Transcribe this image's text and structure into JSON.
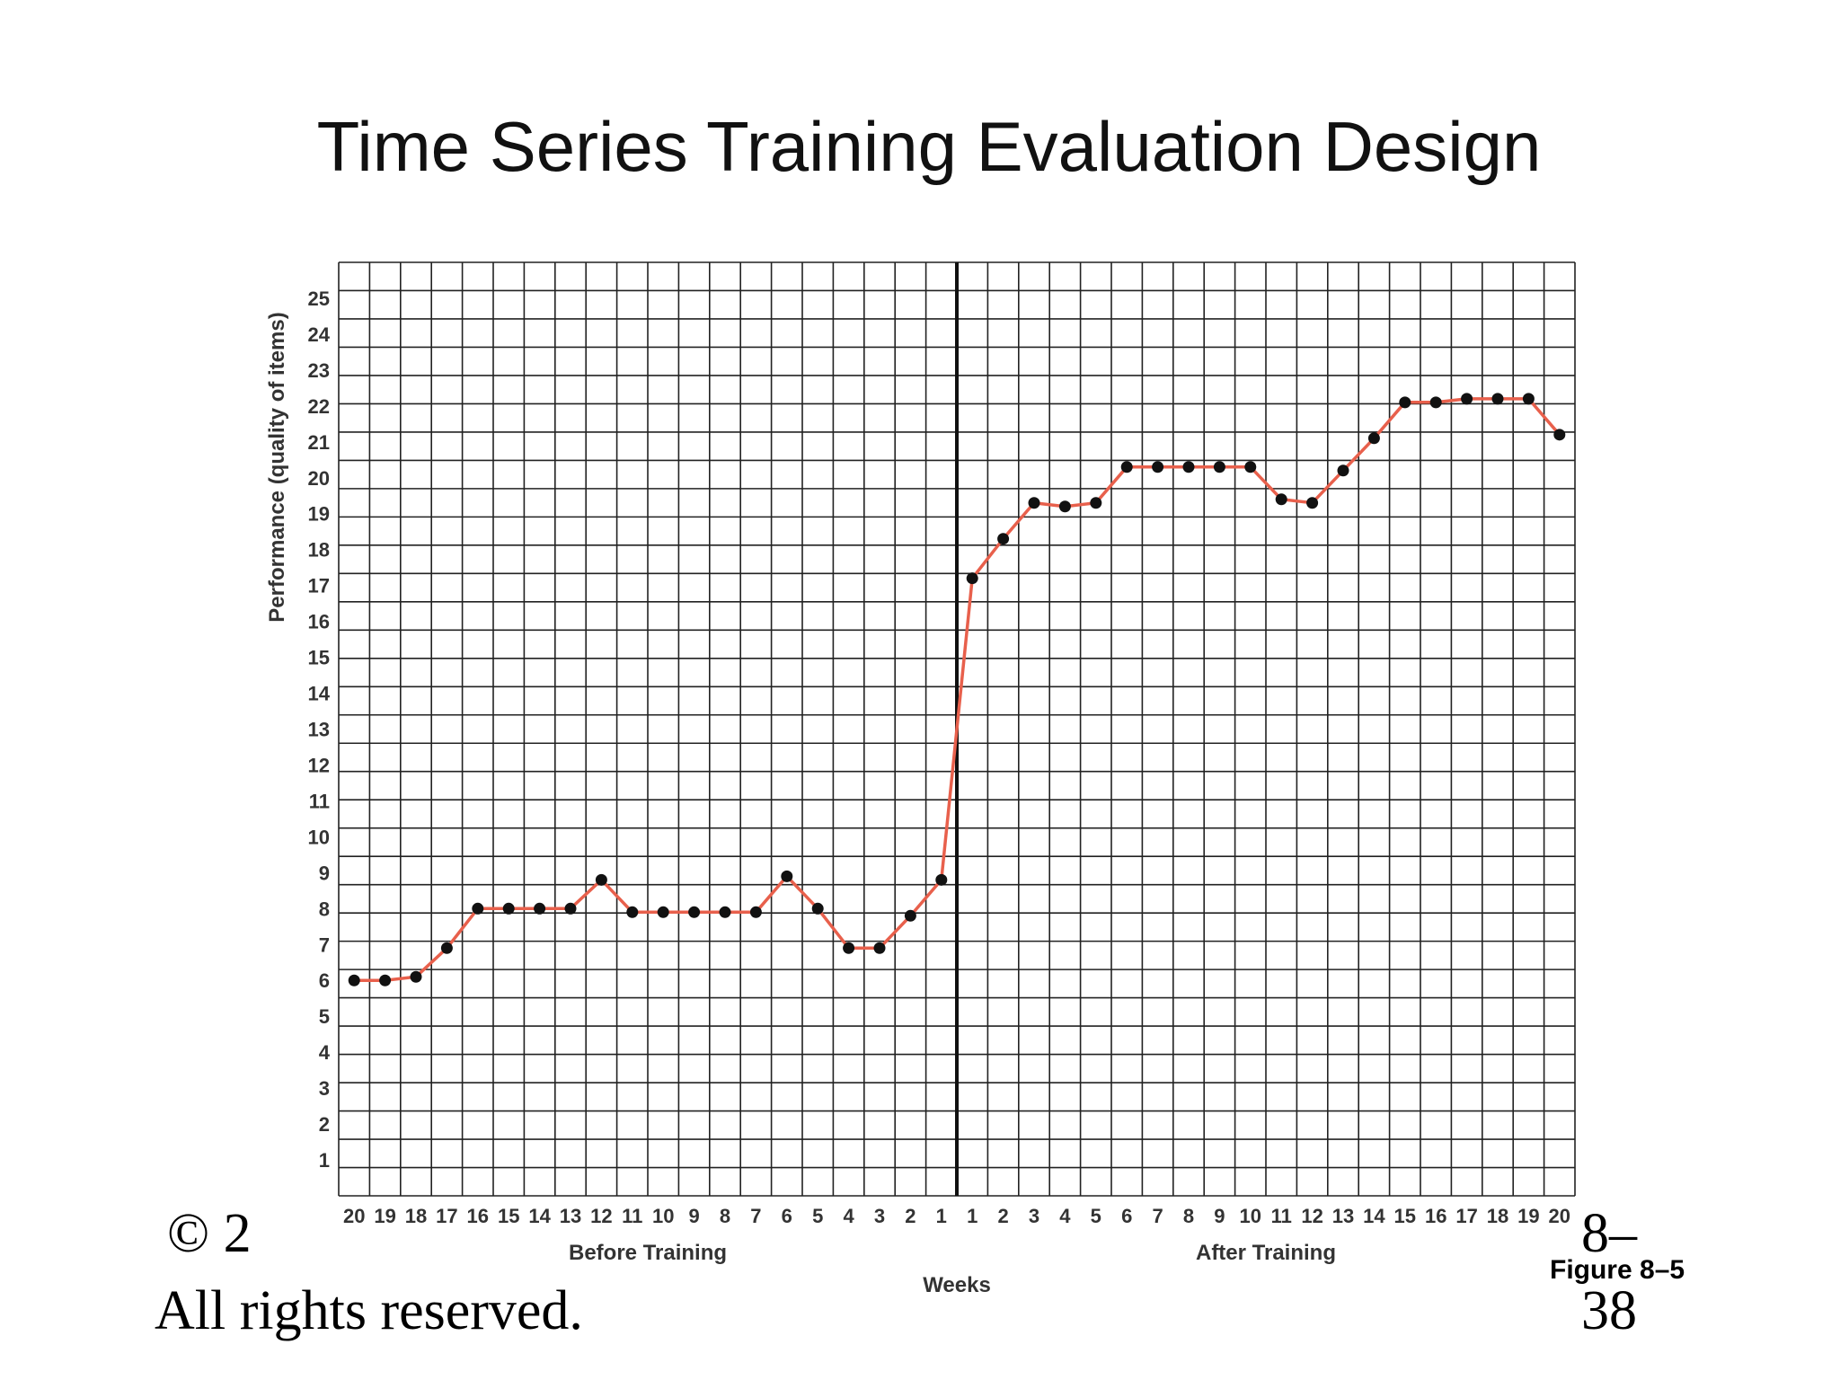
{
  "slide": {
    "title": "Time Series Training Evaluation Design",
    "copyright": "© 2",
    "rights": "All rights reserved.",
    "page_number_top": "8–",
    "page_number_bottom": "38",
    "figure_label": "Figure 8–5"
  },
  "chart_data": {
    "type": "line",
    "title": "",
    "ylabel": "Performance (quality of items)",
    "xlabel": "Weeks",
    "ylim": [
      0,
      26
    ],
    "y_ticks": [
      1,
      2,
      3,
      4,
      5,
      6,
      7,
      8,
      9,
      10,
      11,
      12,
      13,
      14,
      15,
      16,
      17,
      18,
      19,
      20,
      21,
      22,
      23,
      24,
      25
    ],
    "groups": [
      {
        "label": "Before Training",
        "weeks": [
          "20",
          "19",
          "18",
          "17",
          "16",
          "15",
          "14",
          "13",
          "12",
          "11",
          "10",
          "9",
          "8",
          "7",
          "6",
          "5",
          "4",
          "3",
          "2",
          "1"
        ]
      },
      {
        "label": "After Training",
        "weeks": [
          "1",
          "2",
          "3",
          "4",
          "5",
          "6",
          "7",
          "8",
          "9",
          "10",
          "11",
          "12",
          "13",
          "14",
          "15",
          "16",
          "17",
          "18",
          "19",
          "20"
        ]
      }
    ],
    "series": [
      {
        "values": [
          6.0,
          6.0,
          6.1,
          6.9,
          8.0,
          8.0,
          8.0,
          8.0,
          8.8,
          7.9,
          7.9,
          7.9,
          7.9,
          7.9,
          8.9,
          8.0,
          6.9,
          6.9,
          7.8,
          8.8,
          17.2,
          18.3,
          19.3,
          19.2,
          19.3,
          20.3,
          20.3,
          20.3,
          20.3,
          20.3,
          19.4,
          19.3,
          20.2,
          21.1,
          22.1,
          22.1,
          22.2,
          22.2,
          22.2,
          21.2
        ]
      }
    ],
    "line_color": "#e8604c",
    "marker_color": "#111111",
    "grid": true,
    "training_divider": "between Before Training week 1 and After Training week 1"
  }
}
